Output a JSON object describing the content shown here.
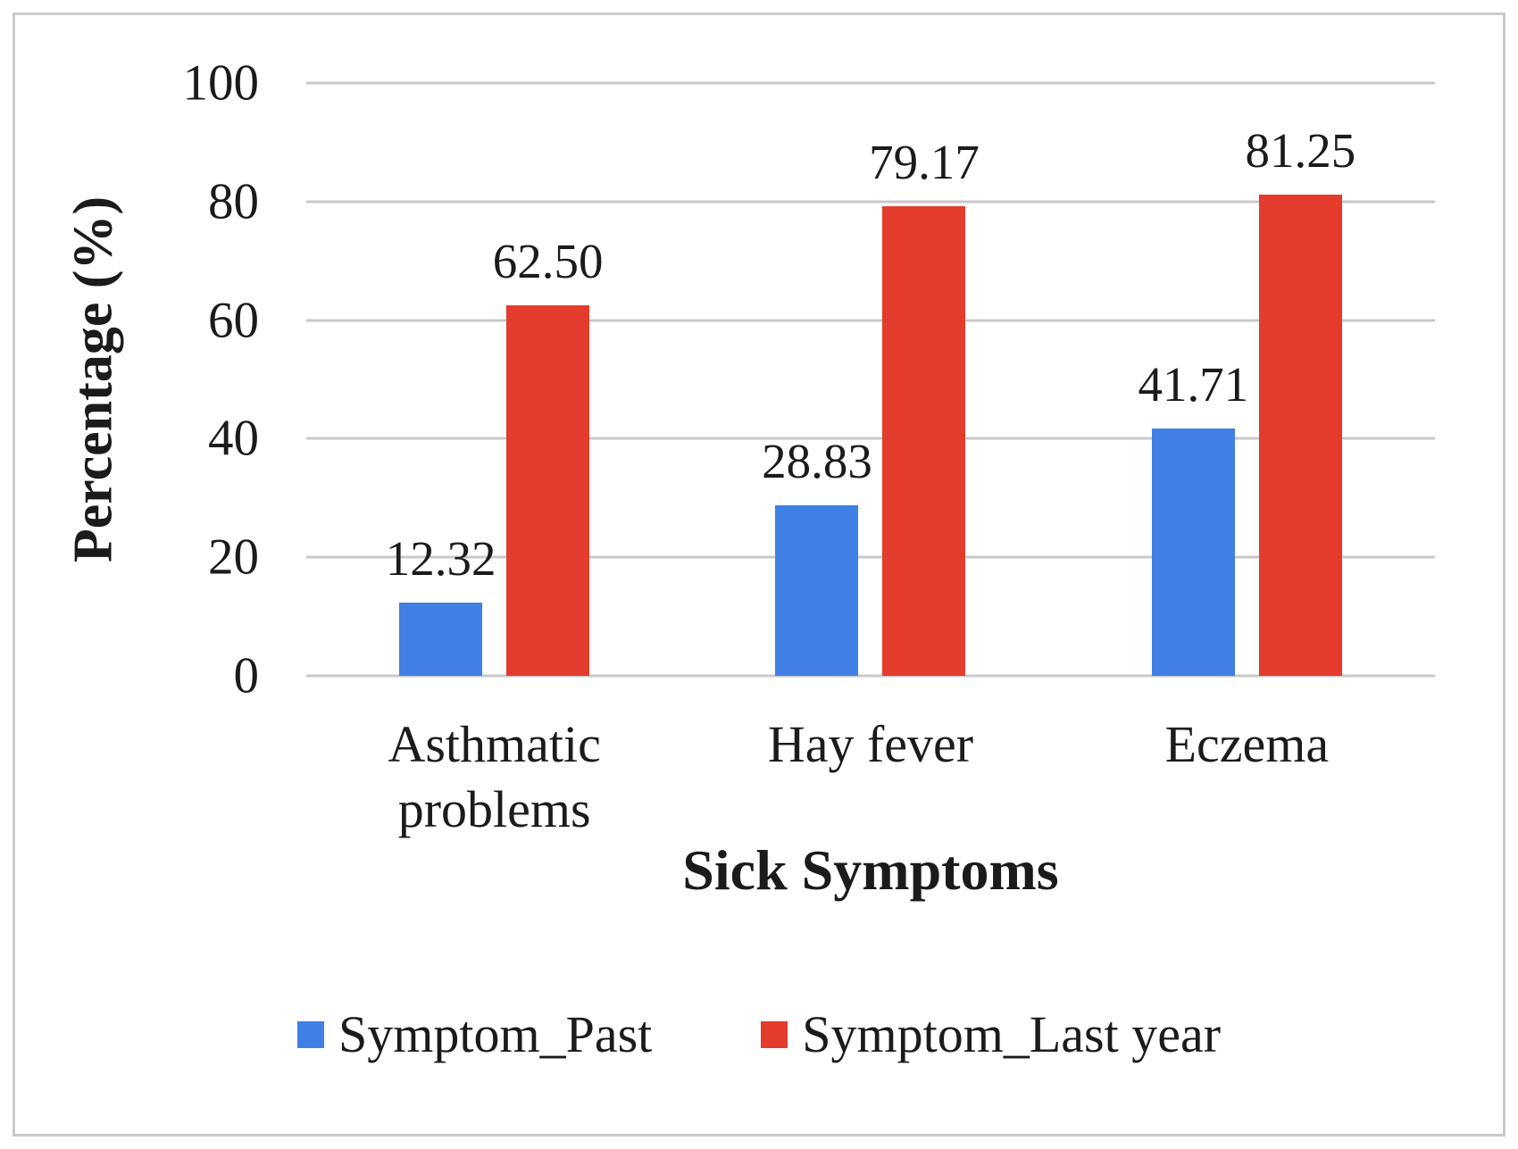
{
  "figure": {
    "background": "#ffffff",
    "frame_border_color": "#c9c9c9",
    "gridline_color": "#c8c8c8",
    "text_color": "#1b1b1b"
  },
  "chart_data": {
    "type": "bar",
    "title": "",
    "xlabel": "Sick Symptoms",
    "ylabel": "Percentage (%)",
    "categories": [
      "Asthmatic problems",
      "Hay fever",
      "Eczema"
    ],
    "series": [
      {
        "name": "Symptom_Past",
        "color": "#4080E5",
        "values": [
          12.32,
          28.83,
          41.71
        ],
        "labels": [
          "12.32",
          "28.83",
          "41.71"
        ]
      },
      {
        "name": "Symptom_Last year",
        "color": "#E33B2C",
        "values": [
          62.5,
          79.17,
          81.25
        ],
        "labels": [
          "62.50",
          "79.17",
          "81.25"
        ]
      }
    ],
    "ylim": [
      0,
      100
    ],
    "yticks": [
      0,
      20,
      40,
      60,
      80,
      100
    ],
    "grid": "horizontal",
    "legend_position": "bottom"
  }
}
